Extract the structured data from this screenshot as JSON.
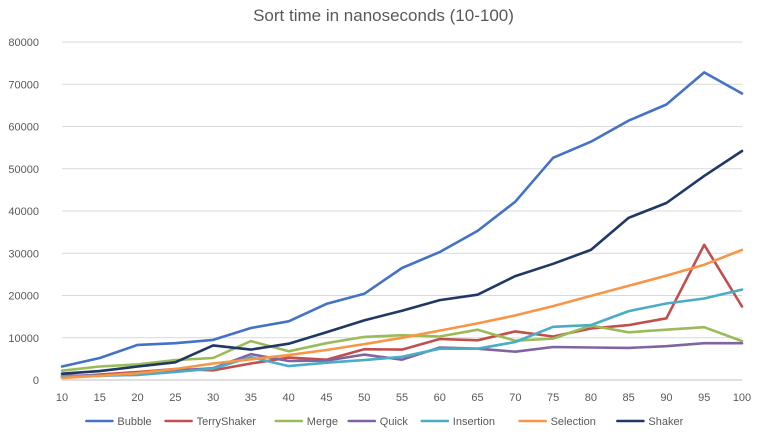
{
  "chart_data": {
    "type": "line",
    "title": "Sort time in nanoseconds (10-100)",
    "xlabel": "",
    "ylabel": "",
    "x": [
      "10",
      "15",
      "20",
      "25",
      "30",
      "35",
      "40",
      "45",
      "50",
      "55",
      "60",
      "65",
      "70",
      "75",
      "80",
      "85",
      "90",
      "95",
      "100"
    ],
    "ylim": [
      0,
      80000
    ],
    "yticks": [
      "0",
      "10000",
      "20000",
      "30000",
      "40000",
      "50000",
      "60000",
      "70000",
      "80000"
    ],
    "grid": true,
    "legend_position": "bottom",
    "series": [
      {
        "name": "Bubble",
        "color": "#4472C4",
        "values": [
          3200,
          5200,
          8300,
          8700,
          9500,
          12300,
          13900,
          18000,
          20400,
          26500,
          30300,
          35300,
          42200,
          52600,
          56400,
          61400,
          65200,
          72800,
          67800
        ]
      },
      {
        "name": "TerryShaker",
        "color": "#C0504D",
        "values": [
          700,
          1300,
          1900,
          2600,
          2300,
          3900,
          5300,
          4800,
          7300,
          7200,
          9700,
          9400,
          11500,
          10300,
          12200,
          13000,
          14600,
          32000,
          17400
        ]
      },
      {
        "name": "Merge",
        "color": "#9BBB59",
        "values": [
          2200,
          3200,
          3700,
          4700,
          5200,
          9200,
          6800,
          8700,
          10200,
          10600,
          10300,
          11900,
          9300,
          9800,
          12900,
          11300,
          11900,
          12500,
          9200
        ]
      },
      {
        "name": "Quick",
        "color": "#8064A2",
        "values": [
          1000,
          1100,
          1600,
          2200,
          2800,
          6100,
          4500,
          4600,
          6000,
          4800,
          7700,
          7400,
          6700,
          7800,
          7700,
          7600,
          8000,
          8700,
          8700
        ]
      },
      {
        "name": "Insertion",
        "color": "#4BACC6",
        "values": [
          800,
          1000,
          1200,
          1900,
          2700,
          5400,
          3300,
          4100,
          4700,
          5500,
          7400,
          7400,
          9000,
          12600,
          13000,
          16300,
          18100,
          19300,
          21400
        ]
      },
      {
        "name": "Selection",
        "color": "#F79646",
        "values": [
          500,
          1000,
          1600,
          2600,
          3900,
          4900,
          5900,
          7100,
          8500,
          10000,
          11700,
          13400,
          15300,
          17500,
          19900,
          22300,
          24700,
          27300,
          30800
        ]
      },
      {
        "name": "Shaker",
        "color": "#1F3864",
        "values": [
          1500,
          2100,
          3200,
          4200,
          8200,
          7200,
          8600,
          11300,
          14100,
          16400,
          18900,
          20200,
          24600,
          27500,
          30800,
          38400,
          41900,
          48300,
          54200
        ]
      }
    ]
  }
}
